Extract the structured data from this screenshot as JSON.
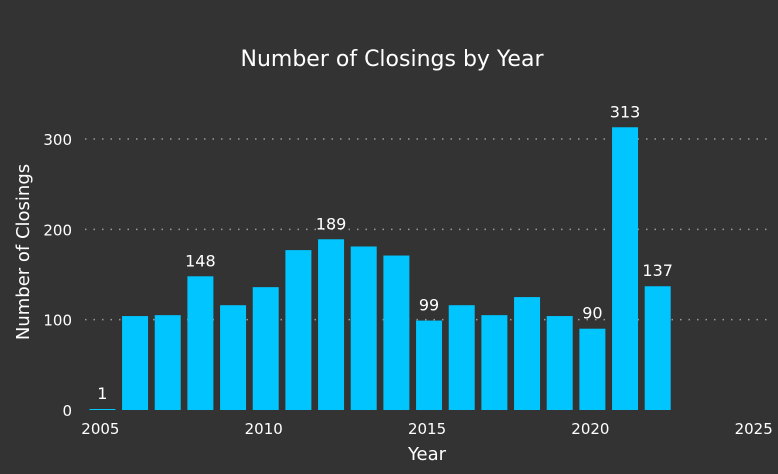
{
  "chart_data": {
    "type": "bar",
    "title": "Number of Closings by Year",
    "xlabel": "Year",
    "ylabel": "Number of Closings",
    "x": [
      2005,
      2006,
      2007,
      2008,
      2009,
      2010,
      2011,
      2012,
      2013,
      2014,
      2015,
      2016,
      2017,
      2018,
      2019,
      2020,
      2021,
      2022
    ],
    "values": [
      1,
      104,
      105,
      148,
      116,
      136,
      177,
      189,
      181,
      171,
      99,
      116,
      105,
      125,
      104,
      90,
      313,
      137
    ],
    "data_labels": [
      {
        "year": 2005,
        "label": "1"
      },
      {
        "year": 2008,
        "label": "148"
      },
      {
        "year": 2012,
        "label": "189"
      },
      {
        "year": 2015,
        "label": "99"
      },
      {
        "year": 2020,
        "label": "90"
      },
      {
        "year": 2021,
        "label": "313"
      },
      {
        "year": 2022,
        "label": "137"
      }
    ],
    "xlim": [
      2005,
      2025
    ],
    "ylim": [
      0,
      313
    ],
    "xticks": [
      2005,
      2010,
      2015,
      2020,
      2025
    ],
    "yticks": [
      0,
      100,
      200,
      300
    ],
    "grid": "horizontal dotted",
    "legend": "none",
    "colors": {
      "background": "#333333",
      "bar": "#00C5FF",
      "text": "#FFFFFF",
      "grid": "#9A9A9A"
    }
  }
}
